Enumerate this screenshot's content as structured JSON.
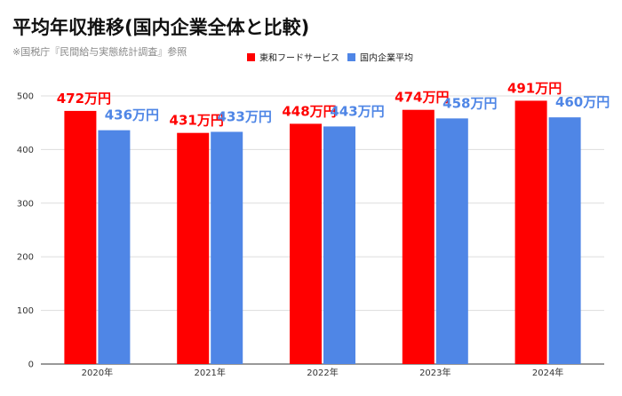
{
  "chart_data": {
    "type": "bar",
    "title": "平均年収推移(国内企業全体と比較)",
    "subtitle": "※国税庁『民間給与実態統計調査』参照",
    "categories": [
      "2020年",
      "2021年",
      "2022年",
      "2023年",
      "2024年"
    ],
    "series": [
      {
        "name": "東和フードサービス",
        "color": "#ff0000",
        "values": [
          472,
          431,
          448,
          474,
          491
        ],
        "labels": [
          "472万円",
          "431万円",
          "448万円",
          "474万円",
          "491万円"
        ]
      },
      {
        "name": "国内企業平均",
        "color": "#4f86e6",
        "values": [
          436,
          433,
          443,
          458,
          460
        ],
        "labels": [
          "436万円",
          "433万円",
          "443万円",
          "458万円",
          "460万円"
        ]
      }
    ],
    "ylim": [
      0,
      500
    ],
    "yticks": [
      0,
      100,
      200,
      300,
      400,
      500
    ],
    "grid": true,
    "legend_position": "top-right"
  }
}
